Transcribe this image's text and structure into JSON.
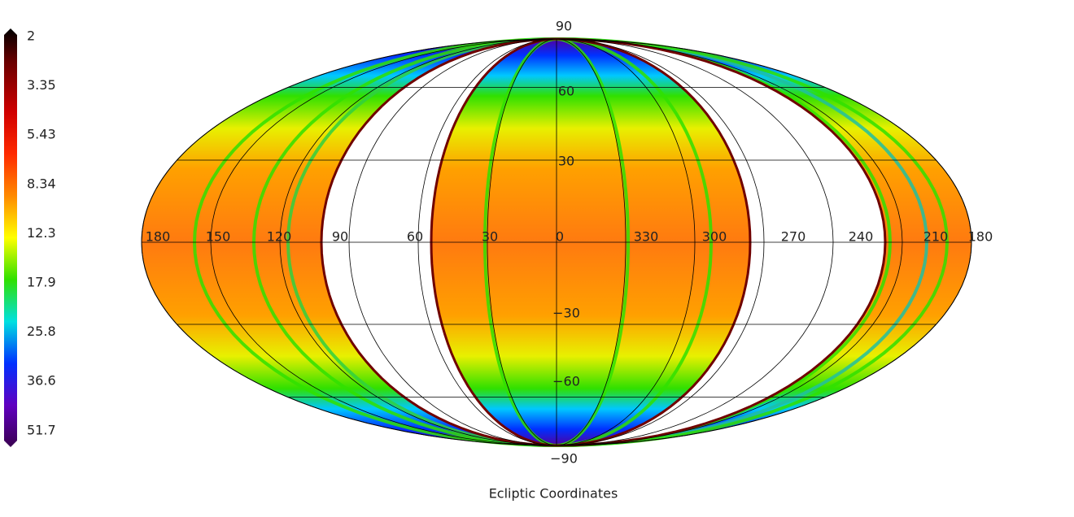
{
  "colorbar": {
    "labels": [
      "2",
      "3.35",
      "5.43",
      "8.34",
      "12.3",
      "17.9",
      "25.8",
      "36.6",
      "51.7"
    ]
  },
  "map": {
    "longitude_labels": [
      "180",
      "150",
      "120",
      "90",
      "60",
      "30",
      "0",
      "330",
      "300",
      "270",
      "240",
      "210",
      "180"
    ],
    "latitude_labels": [
      "90",
      "60",
      "30",
      "−30",
      "−60",
      "−90"
    ],
    "caption": "Ecliptic Coordinates"
  }
}
